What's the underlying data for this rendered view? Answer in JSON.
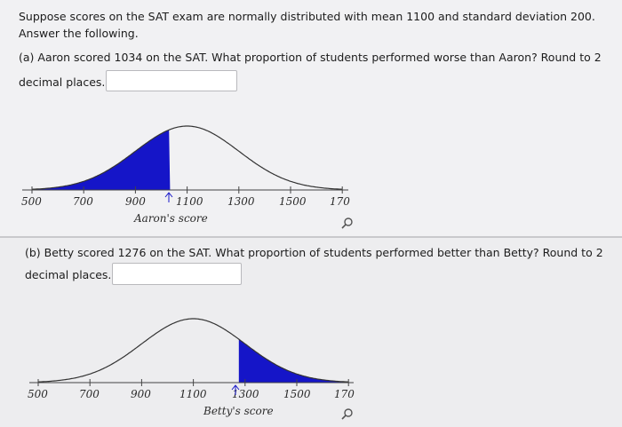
{
  "intro": {
    "line1": "Suppose scores on the SAT exam are normally distributed with mean 1100 and standard deviation 200.",
    "line2": "Answer the following."
  },
  "part_a": {
    "question_line1": "(a) Aaron scored 1034 on the SAT. What proportion of students performed worse than Aaron? Round to 2",
    "question_line2": "decimal places.",
    "answer_value": "",
    "axis_ticks": [
      "500",
      "700",
      "900",
      "1100",
      "1300",
      "1500",
      "170"
    ],
    "marker_label": "Aaron's score",
    "shade_color": "#1515c8",
    "zoom_icon": "magnifier-icon"
  },
  "part_b": {
    "question_line1": "(b) Betty scored 1276 on the SAT. What proportion of students performed better than Betty? Round to 2",
    "question_line2": "decimal places.",
    "answer_value": "",
    "axis_ticks": [
      "500",
      "700",
      "900",
      "1100",
      "1300",
      "1500",
      "170"
    ],
    "marker_label": "Betty's score",
    "shade_color": "#1515c8",
    "zoom_icon": "magnifier-icon"
  }
}
